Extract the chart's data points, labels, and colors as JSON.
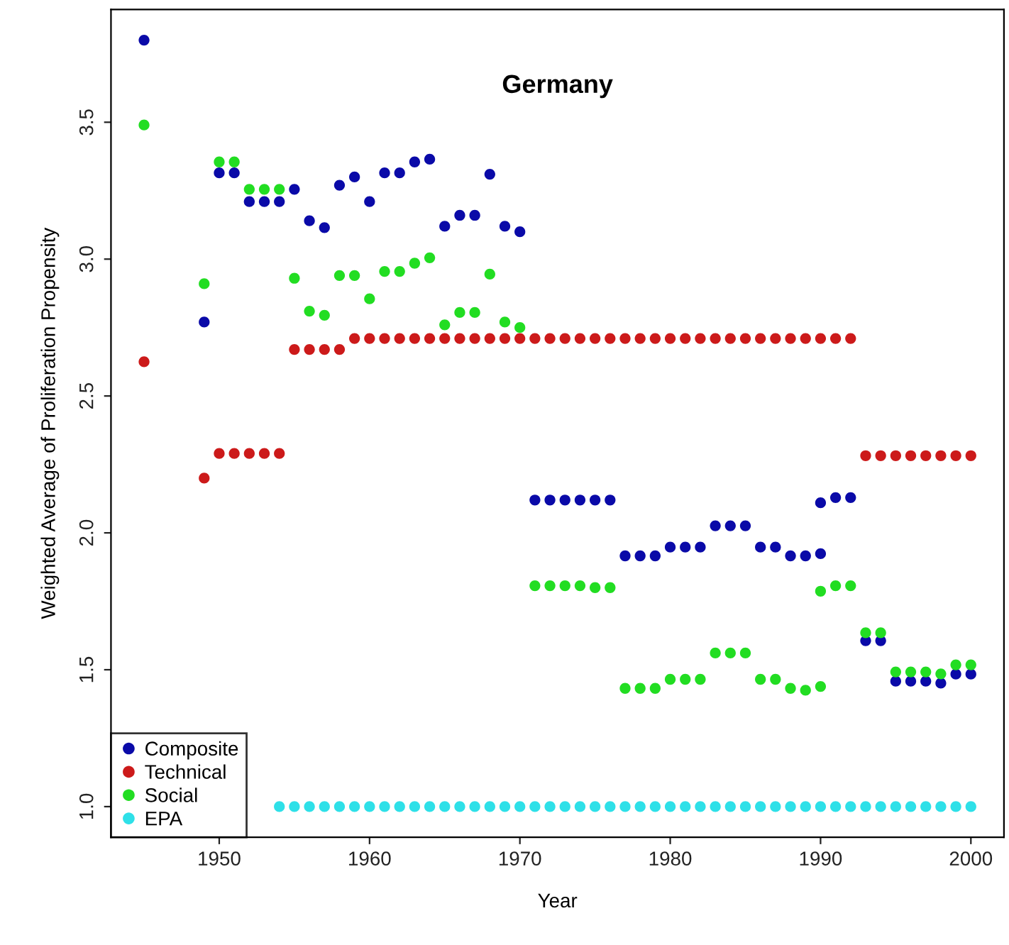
{
  "chart_data": {
    "type": "scatter",
    "title": "Germany",
    "xlabel": "Year",
    "ylabel": "Weighted Average of Proliferation Propensity",
    "xlim": [
      1942.8,
      2002.2
    ],
    "ylim": [
      0.888,
      3.912
    ],
    "xticks": [
      1950,
      1960,
      1970,
      1980,
      1990,
      2000
    ],
    "yticks": [
      {
        "value": 1.0,
        "label": "1.0"
      },
      {
        "value": 1.5,
        "label": "1.5"
      },
      {
        "value": 2.0,
        "label": "2.0"
      },
      {
        "value": 2.5,
        "label": "2.5"
      },
      {
        "value": 3.0,
        "label": "3.0"
      },
      {
        "value": 3.5,
        "label": "3.5"
      }
    ],
    "grid": false,
    "legend": "bottom left",
    "marker": "circle",
    "series": [
      {
        "name": "Composite",
        "color": "#0a0aa8",
        "x": [
          1945,
          1949,
          1950,
          1951,
          1952,
          1953,
          1954,
          1955,
          1956,
          1957,
          1958,
          1959,
          1960,
          1961,
          1962,
          1963,
          1964,
          1965,
          1966,
          1967,
          1968,
          1969,
          1970,
          1971,
          1972,
          1973,
          1974,
          1975,
          1976,
          1977,
          1978,
          1979,
          1980,
          1981,
          1982,
          1983,
          1984,
          1985,
          1986,
          1987,
          1988,
          1989,
          1990,
          1990,
          1991,
          1992,
          1993,
          1994,
          1995,
          1996,
          1997,
          1998,
          1999,
          2000
        ],
        "values": [
          3.8,
          2.77,
          3.315,
          3.315,
          3.21,
          3.21,
          3.21,
          3.255,
          3.14,
          3.115,
          3.27,
          3.3,
          3.21,
          3.315,
          3.315,
          3.355,
          3.365,
          3.12,
          3.16,
          3.16,
          3.31,
          3.12,
          3.1,
          2.12,
          2.12,
          2.12,
          2.12,
          2.12,
          2.12,
          1.916,
          1.916,
          1.916,
          1.948,
          1.948,
          1.948,
          2.026,
          2.026,
          2.026,
          1.948,
          1.948,
          1.916,
          1.916,
          1.924,
          2.11,
          2.129,
          2.129,
          1.606,
          1.606,
          1.458,
          1.458,
          1.458,
          1.451,
          1.484,
          1.484
        ]
      },
      {
        "name": "Technical",
        "color": "#cc1a1a",
        "x": [
          1945,
          1949,
          1950,
          1951,
          1952,
          1953,
          1954,
          1955,
          1956,
          1957,
          1958,
          1959,
          1960,
          1961,
          1962,
          1963,
          1964,
          1965,
          1966,
          1967,
          1968,
          1969,
          1970,
          1971,
          1972,
          1973,
          1974,
          1975,
          1976,
          1977,
          1978,
          1979,
          1980,
          1981,
          1982,
          1983,
          1984,
          1985,
          1986,
          1987,
          1988,
          1989,
          1990,
          1991,
          1992,
          1993,
          1994,
          1995,
          1996,
          1997,
          1998,
          1999,
          2000
        ],
        "values": [
          2.625,
          2.2,
          2.29,
          2.29,
          2.29,
          2.29,
          2.29,
          2.67,
          2.67,
          2.67,
          2.67,
          2.71,
          2.71,
          2.71,
          2.71,
          2.71,
          2.71,
          2.71,
          2.71,
          2.71,
          2.71,
          2.71,
          2.71,
          2.71,
          2.71,
          2.71,
          2.71,
          2.71,
          2.71,
          2.71,
          2.71,
          2.71,
          2.71,
          2.71,
          2.71,
          2.71,
          2.71,
          2.71,
          2.71,
          2.71,
          2.71,
          2.71,
          2.71,
          2.71,
          2.71,
          2.282,
          2.282,
          2.282,
          2.282,
          2.282,
          2.282,
          2.282,
          2.282
        ]
      },
      {
        "name": "Social",
        "color": "#22dd22",
        "x": [
          1945,
          1949,
          1950,
          1951,
          1952,
          1953,
          1954,
          1955,
          1956,
          1957,
          1958,
          1959,
          1960,
          1961,
          1962,
          1963,
          1964,
          1965,
          1966,
          1967,
          1968,
          1969,
          1970,
          1971,
          1972,
          1973,
          1974,
          1975,
          1976,
          1977,
          1978,
          1979,
          1980,
          1981,
          1982,
          1983,
          1984,
          1985,
          1986,
          1987,
          1988,
          1989,
          1990,
          1990,
          1991,
          1992,
          1993,
          1994,
          1995,
          1996,
          1997,
          1998,
          1999,
          2000
        ],
        "values": [
          3.49,
          2.91,
          3.355,
          3.355,
          3.255,
          3.255,
          3.255,
          2.93,
          2.81,
          2.795,
          2.94,
          2.94,
          2.855,
          2.955,
          2.955,
          2.985,
          3.005,
          2.76,
          2.805,
          2.805,
          2.945,
          2.77,
          2.75,
          1.807,
          1.807,
          1.807,
          1.807,
          1.8,
          1.8,
          1.432,
          1.432,
          1.432,
          1.465,
          1.465,
          1.465,
          1.561,
          1.561,
          1.561,
          1.465,
          1.465,
          1.432,
          1.425,
          1.439,
          1.787,
          1.807,
          1.807,
          1.635,
          1.635,
          1.492,
          1.492,
          1.492,
          1.485,
          1.518,
          1.518
        ]
      },
      {
        "name": "EPA",
        "color": "#2ee0e8",
        "x": [
          1954,
          1955,
          1956,
          1957,
          1958,
          1959,
          1960,
          1961,
          1962,
          1963,
          1964,
          1965,
          1966,
          1967,
          1968,
          1969,
          1970,
          1971,
          1972,
          1973,
          1974,
          1975,
          1976,
          1977,
          1978,
          1979,
          1980,
          1981,
          1982,
          1983,
          1984,
          1985,
          1986,
          1987,
          1988,
          1989,
          1990,
          1991,
          1992,
          1993,
          1994,
          1995,
          1996,
          1997,
          1998,
          1999,
          2000
        ],
        "values": [
          1.0,
          1.0,
          1.0,
          1.0,
          1.0,
          1.0,
          1.0,
          1.0,
          1.0,
          1.0,
          1.0,
          1.0,
          1.0,
          1.0,
          1.0,
          1.0,
          1.0,
          1.0,
          1.0,
          1.0,
          1.0,
          1.0,
          1.0,
          1.0,
          1.0,
          1.0,
          1.0,
          1.0,
          1.0,
          1.0,
          1.0,
          1.0,
          1.0,
          1.0,
          1.0,
          1.0,
          1.0,
          1.0,
          1.0,
          1.0,
          1.0,
          1.0,
          1.0,
          1.0,
          1.0,
          1.0,
          1.0
        ]
      }
    ]
  }
}
